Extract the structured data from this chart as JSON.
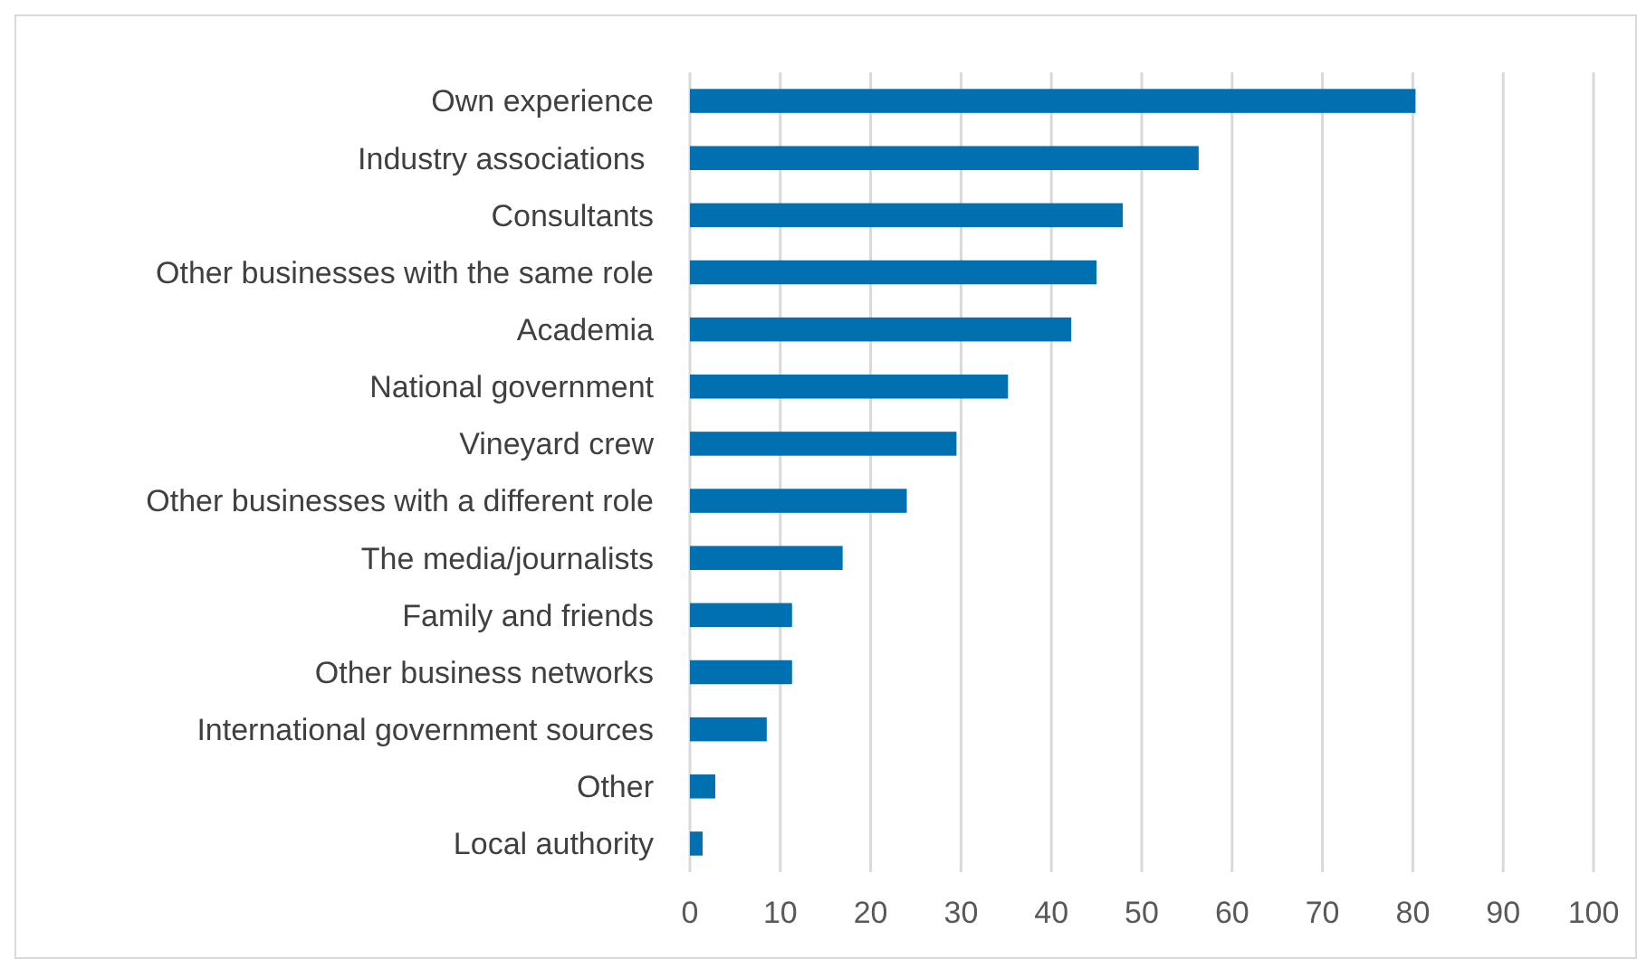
{
  "chart_data": {
    "type": "bar",
    "orientation": "horizontal",
    "categories": [
      "Own experience",
      "Industry associations ",
      "Consultants",
      "Other businesses with the same role",
      "Academia",
      "National government",
      "Vineyard crew",
      "Other businesses with a different role",
      "The media/journalists",
      "Family and friends",
      "Other business networks",
      "International government sources",
      "Other",
      "Local authority"
    ],
    "values": [
      80.3,
      56.3,
      47.9,
      45.0,
      42.2,
      35.2,
      29.5,
      24.0,
      16.9,
      11.3,
      11.3,
      8.5,
      2.8,
      1.4
    ],
    "color": "#0070b0",
    "xlim": [
      0,
      100
    ],
    "xticks": [
      0,
      10,
      20,
      30,
      40,
      50,
      60,
      70,
      80,
      90,
      100
    ],
    "grid": "x"
  }
}
